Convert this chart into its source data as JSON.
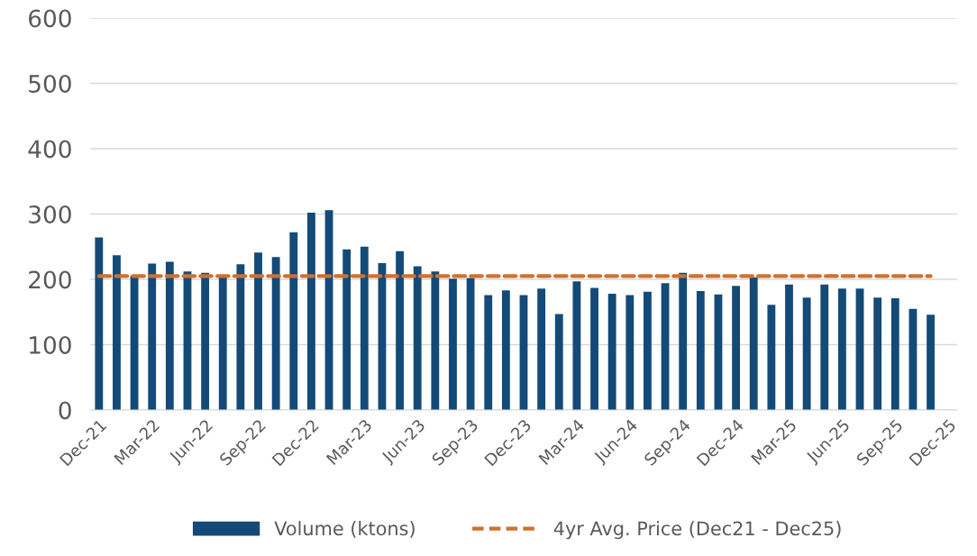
{
  "chart_data": {
    "type": "bar",
    "categories": [
      "Dec-21",
      null,
      null,
      "Mar-22",
      null,
      null,
      "Jun-22",
      null,
      null,
      "Sep-22",
      null,
      null,
      "Dec-22",
      null,
      null,
      "Mar-23",
      null,
      null,
      "Jun-23",
      null,
      null,
      "Sep-23",
      null,
      null,
      "Dec-23",
      null,
      null,
      "Mar-24",
      null,
      null,
      "Jun-24",
      null,
      null,
      "Sep-24",
      null,
      null,
      "Dec-24",
      null,
      null,
      "Mar-25",
      null,
      null,
      "Jun-25",
      null,
      null,
      "Sep-25",
      null,
      null,
      "Dec-25"
    ],
    "series": [
      {
        "name": "Volume (ktons)",
        "color": "#134a78",
        "values": [
          264,
          237,
          206,
          224,
          227,
          212,
          210,
          204,
          223,
          241,
          234,
          272,
          302,
          306,
          246,
          250,
          225,
          243,
          220,
          212,
          201,
          202,
          176,
          183,
          176,
          186,
          147,
          197,
          187,
          178,
          176,
          181,
          194,
          210,
          182,
          177,
          190,
          203,
          161,
          192,
          172,
          192,
          186,
          186,
          172,
          171,
          155,
          146,
          null
        ]
      },
      {
        "name": "4yr Avg. Price (Dec21 - Dec25)",
        "type": "line",
        "color": "#d0702f",
        "line_style": "dashed",
        "values": [
          205,
          205,
          205,
          205,
          205,
          205,
          205,
          205,
          205,
          205,
          205,
          205,
          205,
          205,
          205,
          205,
          205,
          205,
          205,
          205,
          205,
          205,
          205,
          205,
          205,
          205,
          205,
          205,
          205,
          205,
          205,
          205,
          205,
          205,
          205,
          205,
          205,
          205,
          205,
          205,
          205,
          205,
          205,
          205,
          205,
          205,
          205,
          205,
          null
        ]
      }
    ],
    "ylim": [
      0,
      600
    ],
    "yticks": [
      0,
      100,
      200,
      300,
      400,
      500,
      600
    ],
    "grid": "y",
    "legend": "bottom"
  }
}
